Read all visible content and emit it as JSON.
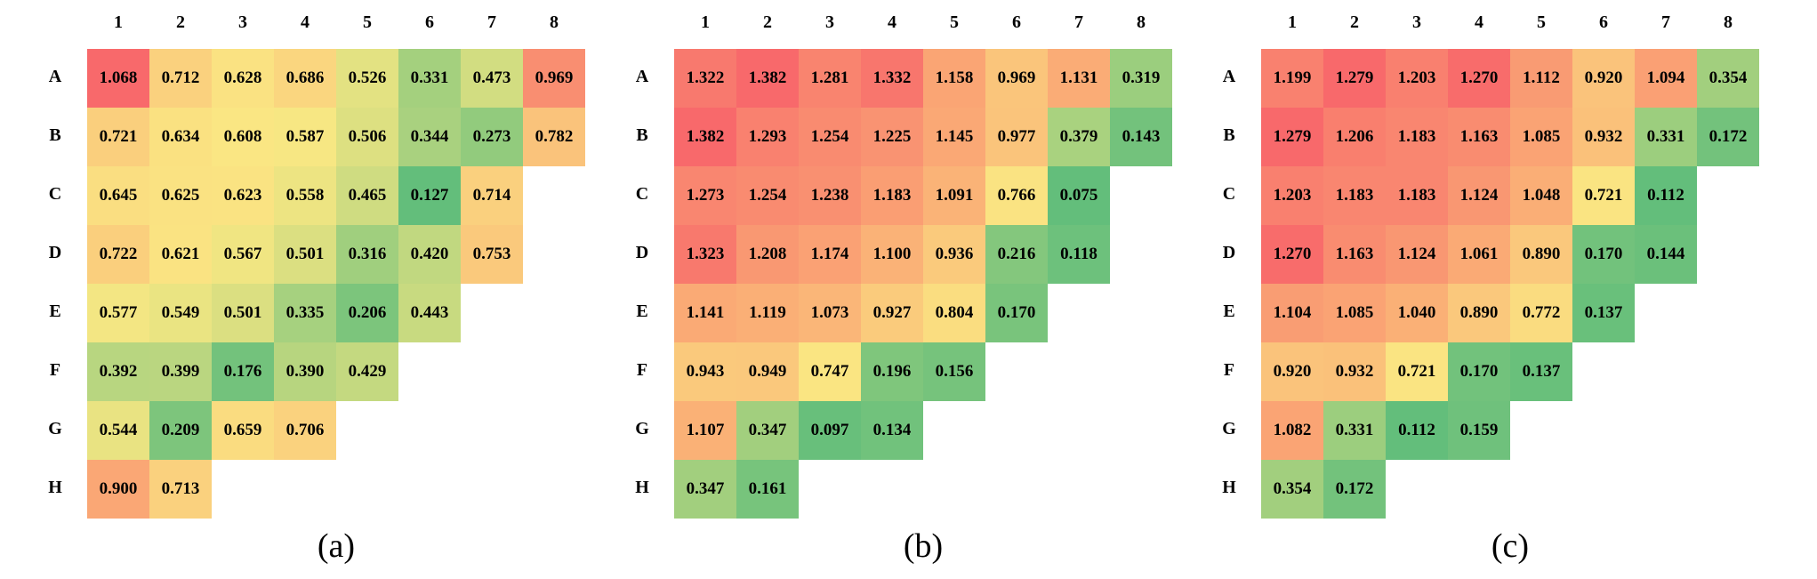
{
  "chart_data": [
    {
      "type": "heatmap",
      "caption": "(a)",
      "columns": [
        "1",
        "2",
        "3",
        "4",
        "5",
        "6",
        "7",
        "8"
      ],
      "rows": [
        "A",
        "B",
        "C",
        "D",
        "E",
        "F",
        "G",
        "H"
      ],
      "values": [
        [
          "1.068",
          "0.712",
          "0.628",
          "0.686",
          "0.526",
          "0.331",
          "0.473",
          "0.969"
        ],
        [
          "0.721",
          "0.634",
          "0.608",
          "0.587",
          "0.506",
          "0.344",
          "0.273",
          "0.782"
        ],
        [
          "0.645",
          "0.625",
          "0.623",
          "0.558",
          "0.465",
          "0.127",
          "0.714"
        ],
        [
          "0.722",
          "0.621",
          "0.567",
          "0.501",
          "0.316",
          "0.420",
          "0.753"
        ],
        [
          "0.577",
          "0.549",
          "0.501",
          "0.335",
          "0.206",
          "0.443"
        ],
        [
          "0.392",
          "0.399",
          "0.176",
          "0.390",
          "0.429"
        ],
        [
          "0.544",
          "0.209",
          "0.659",
          "0.706"
        ],
        [
          "0.900",
          "0.713"
        ]
      ]
    },
    {
      "type": "heatmap",
      "caption": "(b)",
      "columns": [
        "1",
        "2",
        "3",
        "4",
        "5",
        "6",
        "7",
        "8"
      ],
      "rows": [
        "A",
        "B",
        "C",
        "D",
        "E",
        "F",
        "G",
        "H"
      ],
      "values": [
        [
          "1.322",
          "1.382",
          "1.281",
          "1.332",
          "1.158",
          "0.969",
          "1.131",
          "0.319"
        ],
        [
          "1.382",
          "1.293",
          "1.254",
          "1.225",
          "1.145",
          "0.977",
          "0.379",
          "0.143"
        ],
        [
          "1.273",
          "1.254",
          "1.238",
          "1.183",
          "1.091",
          "0.766",
          "0.075"
        ],
        [
          "1.323",
          "1.208",
          "1.174",
          "1.100",
          "0.936",
          "0.216",
          "0.118"
        ],
        [
          "1.141",
          "1.119",
          "1.073",
          "0.927",
          "0.804",
          "0.170"
        ],
        [
          "0.943",
          "0.949",
          "0.747",
          "0.196",
          "0.156"
        ],
        [
          "1.107",
          "0.347",
          "0.097",
          "0.134"
        ],
        [
          "0.347",
          "0.161"
        ]
      ]
    },
    {
      "type": "heatmap",
      "caption": "(c)",
      "columns": [
        "1",
        "2",
        "3",
        "4",
        "5",
        "6",
        "7",
        "8"
      ],
      "rows": [
        "A",
        "B",
        "C",
        "D",
        "E",
        "F",
        "G",
        "H"
      ],
      "values": [
        [
          "1.199",
          "1.279",
          "1.203",
          "1.270",
          "1.112",
          "0.920",
          "1.094",
          "0.354"
        ],
        [
          "1.279",
          "1.206",
          "1.183",
          "1.163",
          "1.085",
          "0.932",
          "0.331",
          "0.172"
        ],
        [
          "1.203",
          "1.183",
          "1.183",
          "1.124",
          "1.048",
          "0.721",
          "0.112"
        ],
        [
          "1.270",
          "1.163",
          "1.124",
          "1.061",
          "0.890",
          "0.170",
          "0.144"
        ],
        [
          "1.104",
          "1.085",
          "1.040",
          "0.890",
          "0.772",
          "0.137"
        ],
        [
          "0.920",
          "0.932",
          "0.721",
          "0.170",
          "0.137"
        ],
        [
          "1.082",
          "0.331",
          "0.112",
          "0.159"
        ],
        [
          "0.354",
          "0.172"
        ]
      ]
    }
  ]
}
